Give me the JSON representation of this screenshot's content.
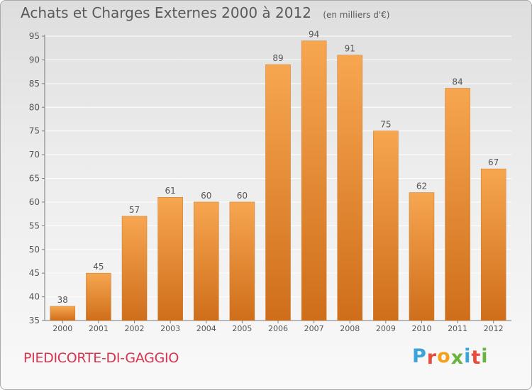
{
  "header": {
    "title": "Achats et Charges Externes 2000 à 2012",
    "unit": "(en milliers d'€)"
  },
  "footer": {
    "commune": "PIEDICORTE-DI-GAGGIO",
    "logo": {
      "letters": [
        "P",
        "r",
        "o",
        "x",
        "i",
        "t",
        "i"
      ],
      "colors": [
        "#3aa3dc",
        "#e84d3c",
        "#f4a21c",
        "#6bb33f",
        "#3aa3dc",
        "#e84d3c",
        "#6bb33f"
      ]
    }
  },
  "chart_data": {
    "type": "bar",
    "categories": [
      "2000",
      "2001",
      "2002",
      "2003",
      "2004",
      "2005",
      "2006",
      "2007",
      "2008",
      "2009",
      "2010",
      "2011",
      "2012"
    ],
    "values": [
      38,
      45,
      57,
      61,
      60,
      60,
      89,
      94,
      91,
      75,
      62,
      84,
      67
    ],
    "ylim": [
      35,
      95
    ],
    "yticks": [
      35,
      40,
      45,
      50,
      55,
      60,
      65,
      70,
      75,
      80,
      85,
      90,
      95
    ],
    "grid": true,
    "colors": {
      "bar_light": "#f7a650",
      "bar_dark": "#cf6e1a",
      "grid": "#ffffff",
      "axis": "#7a7a7a",
      "text": "#555555"
    }
  }
}
